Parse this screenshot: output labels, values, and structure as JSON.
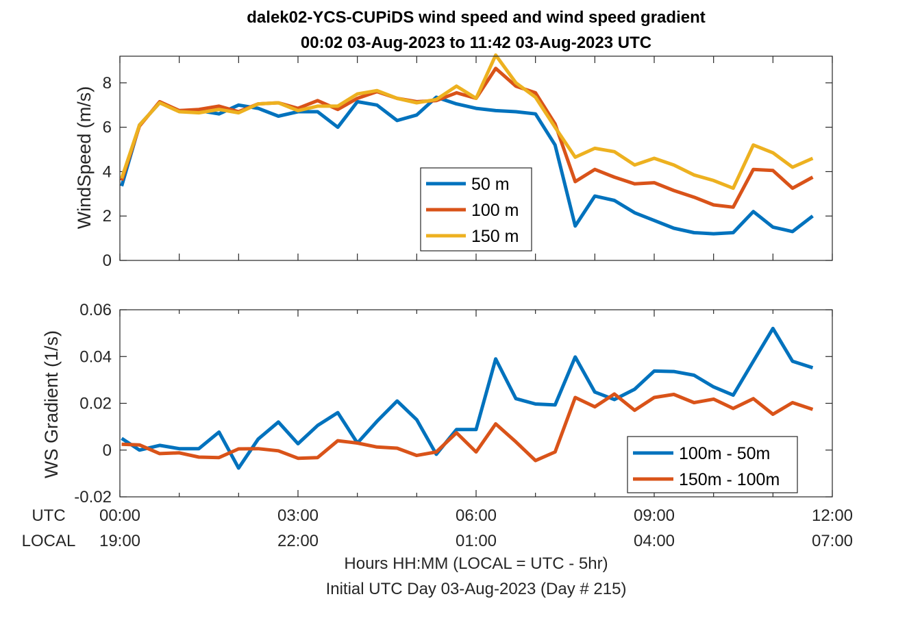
{
  "chart_data": [
    {
      "type": "line",
      "title": "dalek02-YCS-CUPiDS  wind speed and wind speed gradient",
      "subtitle": "00:02 03-Aug-2023 to 11:42 03-Aug-2023  UTC",
      "ylabel": "WindSpeed (m/s)",
      "xlim": [
        0,
        12
      ],
      "ylim": [
        0,
        9.2
      ],
      "yticks": [
        0,
        2,
        4,
        6,
        8
      ],
      "ytick_labels": [
        "0",
        "2",
        "4",
        "6",
        "8"
      ],
      "grid": false,
      "legend_position": "center-right",
      "x": [
        0.03,
        0.33,
        0.67,
        1.0,
        1.33,
        1.67,
        2.0,
        2.33,
        2.67,
        3.0,
        3.33,
        3.67,
        4.0,
        4.33,
        4.67,
        5.0,
        5.33,
        5.67,
        6.0,
        6.33,
        6.67,
        7.0,
        7.33,
        7.67,
        8.0,
        8.33,
        8.67,
        9.0,
        9.33,
        9.67,
        10.0,
        10.33,
        10.67,
        11.0,
        11.33,
        11.67
      ],
      "series": [
        {
          "name": "50 m",
          "color": "#0072BD",
          "values": [
            3.35,
            6.1,
            7.1,
            6.75,
            6.75,
            6.6,
            7.0,
            6.85,
            6.5,
            6.7,
            6.7,
            6.0,
            7.15,
            7.0,
            6.3,
            6.55,
            7.35,
            7.05,
            6.85,
            6.75,
            6.7,
            6.6,
            5.2,
            1.55,
            2.9,
            2.7,
            2.15,
            1.8,
            1.45,
            1.25,
            1.2,
            1.25,
            2.2,
            1.5,
            1.3,
            2.0
          ]
        },
        {
          "name": "100 m",
          "color": "#D95319",
          "values": [
            3.6,
            6.05,
            7.15,
            6.75,
            6.8,
            6.95,
            6.7,
            7.05,
            7.1,
            6.85,
            7.2,
            6.8,
            7.3,
            7.6,
            7.3,
            7.15,
            7.2,
            7.55,
            7.3,
            8.65,
            7.85,
            7.55,
            6.15,
            3.55,
            4.1,
            3.75,
            3.45,
            3.5,
            3.15,
            2.85,
            2.5,
            2.4,
            4.1,
            4.05,
            3.25,
            3.75
          ]
        },
        {
          "name": "150 m",
          "color": "#EDB120",
          "values": [
            3.7,
            6.1,
            7.1,
            6.7,
            6.65,
            6.8,
            6.65,
            7.05,
            7.1,
            6.75,
            6.95,
            6.95,
            7.5,
            7.65,
            7.3,
            7.1,
            7.25,
            7.85,
            7.3,
            9.25,
            8.0,
            7.35,
            6.0,
            4.65,
            5.05,
            4.9,
            4.3,
            4.6,
            4.3,
            3.85,
            3.6,
            3.25,
            5.2,
            4.85,
            4.2,
            4.6
          ]
        }
      ]
    },
    {
      "type": "line",
      "ylabel": "WS Gradient (1/s)",
      "xlim": [
        0,
        12
      ],
      "ylim": [
        -0.02,
        0.06
      ],
      "yticks": [
        -0.02,
        0,
        0.02,
        0.04,
        0.06
      ],
      "ytick_labels": [
        "-0.02",
        "0",
        "0.02",
        "0.04",
        "0.06"
      ],
      "grid": false,
      "legend_position": "bottom-right",
      "x": [
        0.03,
        0.33,
        0.67,
        1.0,
        1.33,
        1.67,
        2.0,
        2.33,
        2.67,
        3.0,
        3.33,
        3.67,
        4.0,
        4.33,
        4.67,
        5.0,
        5.33,
        5.67,
        6.0,
        6.33,
        6.67,
        7.0,
        7.33,
        7.67,
        8.0,
        8.33,
        8.67,
        9.0,
        9.33,
        9.67,
        10.0,
        10.33,
        10.67,
        11.0,
        11.33,
        11.67
      ],
      "series": [
        {
          "name": "100m - 50m",
          "color": "#0072BD",
          "values": [
            0.005,
            0.0,
            0.002,
            0.0006,
            0.0006,
            0.0077,
            -0.0077,
            0.0047,
            0.012,
            0.0027,
            0.0105,
            0.016,
            0.003,
            0.0123,
            0.021,
            0.013,
            -0.0018,
            0.0088,
            0.0088,
            0.039,
            0.022,
            0.0197,
            0.0193,
            0.0398,
            0.0248,
            0.0216,
            0.026,
            0.0338,
            0.0336,
            0.032,
            0.027,
            0.0235,
            0.038,
            0.052,
            0.038,
            0.0352
          ]
        },
        {
          "name": "150m - 100m",
          "color": "#D95319",
          "values": [
            0.0025,
            0.0022,
            -0.0015,
            -0.0012,
            -0.003,
            -0.0032,
            0.0005,
            0.0006,
            -0.0003,
            -0.0035,
            -0.0032,
            0.004,
            0.003,
            0.0013,
            0.0008,
            -0.0023,
            -0.0008,
            0.0074,
            -0.0008,
            0.0112,
            0.0035,
            -0.0045,
            -0.0008,
            0.0225,
            0.0185,
            0.024,
            0.017,
            0.0225,
            0.0238,
            0.0203,
            0.0218,
            0.0178,
            0.022,
            0.0153,
            0.0203,
            0.0174
          ]
        }
      ]
    }
  ],
  "x_axis": {
    "row_labels": [
      "UTC",
      "LOCAL"
    ],
    "ticks": [
      0,
      3,
      6,
      9,
      12
    ],
    "utc_labels": [
      "00:00",
      "03:00",
      "06:00",
      "09:00",
      "12:00"
    ],
    "local_labels": [
      "19:00",
      "22:00",
      "01:00",
      "04:00",
      "07:00"
    ],
    "label": "Hours HH:MM  (LOCAL = UTC - 5hr)",
    "footnote": "Initial UTC Day 03-Aug-2023 (Day # 215)"
  }
}
